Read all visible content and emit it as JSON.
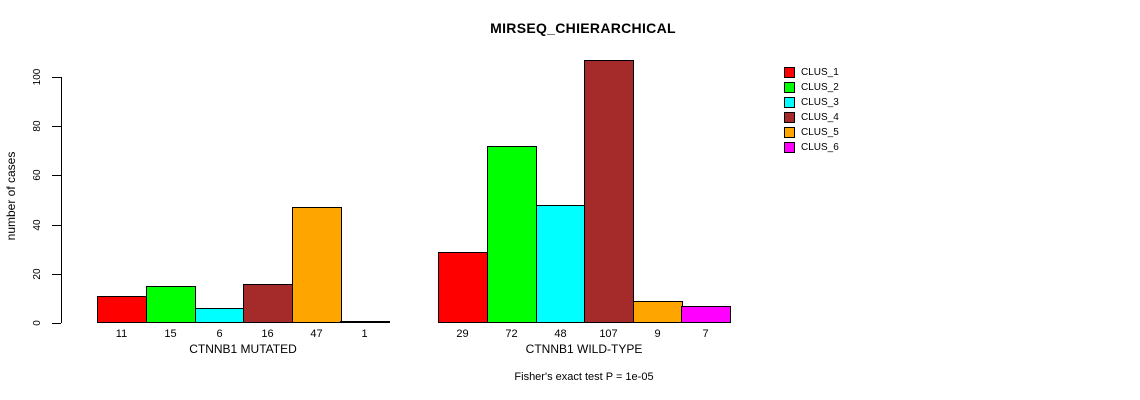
{
  "chart_data": {
    "type": "bar",
    "title": "MIRSEQ_CHIERARCHICAL",
    "ylabel": "number of cases",
    "xlabel": "",
    "footer": "Fisher's exact test P = 1e-05",
    "ylim": [
      0,
      107
    ],
    "yticks": [
      0,
      20,
      40,
      60,
      80,
      100
    ],
    "grid": false,
    "legend_position": "right",
    "bar_value_labels_shown": true,
    "categories": [
      "CTNNB1 MUTATED",
      "CTNNB1 WILD-TYPE"
    ],
    "series": [
      {
        "name": "CLUS_1",
        "color": "#ff0000",
        "values": [
          11,
          29
        ]
      },
      {
        "name": "CLUS_2",
        "color": "#00ff00",
        "values": [
          15,
          72
        ]
      },
      {
        "name": "CLUS_3",
        "color": "#00ffff",
        "values": [
          6,
          48
        ]
      },
      {
        "name": "CLUS_4",
        "color": "#a52a2a",
        "values": [
          16,
          107
        ]
      },
      {
        "name": "CLUS_5",
        "color": "#ffa500",
        "values": [
          47,
          9
        ]
      },
      {
        "name": "CLUS_6",
        "color": "#ff00ff",
        "values": [
          1,
          7
        ]
      }
    ],
    "colors": {
      "text": "#000000",
      "axis": "#000000",
      "background": "#ffffff"
    }
  }
}
